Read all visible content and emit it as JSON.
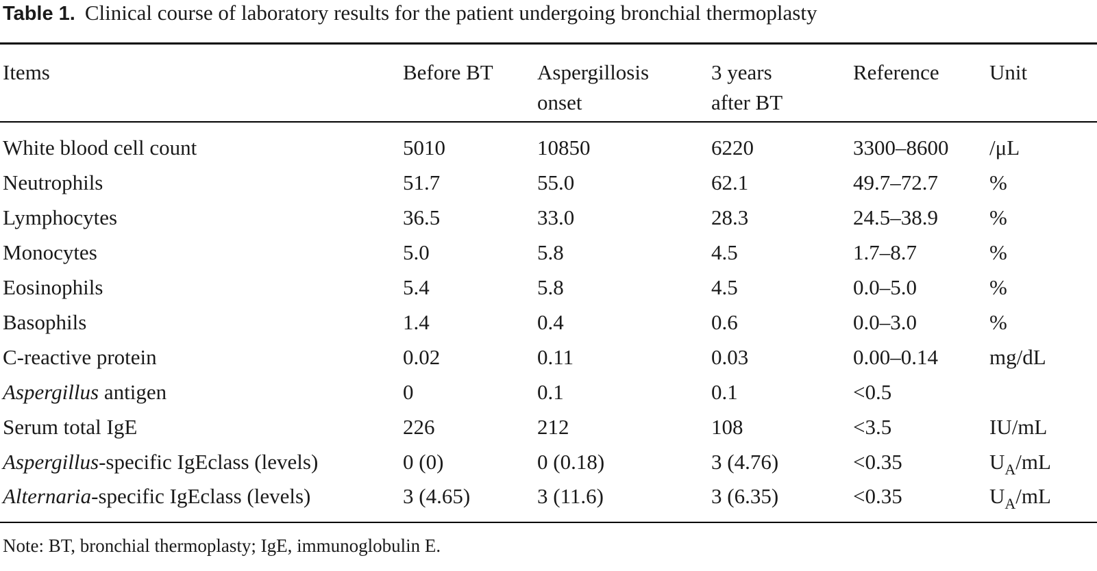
{
  "caption": {
    "label": "Table 1.",
    "text": "Clinical course of laboratory results for the patient undergoing bronchial thermoplasty"
  },
  "headers": {
    "items": "Items",
    "before_bt": "Before BT",
    "aspergillosis_onset_1": "Aspergillosis",
    "aspergillosis_onset_2": "onset",
    "three_years_1": "3 years",
    "three_years_2": "after BT",
    "reference": "Reference",
    "unit": "Unit"
  },
  "rows": [
    {
      "item": "White blood cell count",
      "before": "5010",
      "onset": "10850",
      "after": "6220",
      "ref": "3300–8600",
      "unit": "/μL"
    },
    {
      "item": "Neutrophils",
      "before": "51.7",
      "onset": "55.0",
      "after": "62.1",
      "ref": "49.7–72.7",
      "unit": "%"
    },
    {
      "item": "Lymphocytes",
      "before": "36.5",
      "onset": "33.0",
      "after": "28.3",
      "ref": "24.5–38.9",
      "unit": "%"
    },
    {
      "item": "Monocytes",
      "before": "5.0",
      "onset": "5.8",
      "after": "4.5",
      "ref": "1.7–8.7",
      "unit": "%"
    },
    {
      "item": "Eosinophils",
      "before": "5.4",
      "onset": "5.8",
      "after": "4.5",
      "ref": "0.0–5.0",
      "unit": "%"
    },
    {
      "item": "Basophils",
      "before": "1.4",
      "onset": "0.4",
      "after": "0.6",
      "ref": "0.0–3.0",
      "unit": "%"
    },
    {
      "item": "C-reactive protein",
      "before": "0.02",
      "onset": "0.11",
      "after": "0.03",
      "ref": "0.00–0.14",
      "unit": "mg/dL"
    },
    {
      "item_italic": "Aspergillus",
      "item_rest": " antigen",
      "before": "0",
      "onset": "0.1",
      "after": "0.1",
      "ref": "<0.5",
      "unit": ""
    },
    {
      "item": "Serum total IgE",
      "before": "226",
      "onset": "212",
      "after": "108",
      "ref": "<3.5",
      "unit": "IU/mL"
    },
    {
      "item_italic": "Aspergillus",
      "item_rest": "-specific IgEclass (levels)",
      "before": "0 (0)",
      "onset": "0 (0.18)",
      "after": "3 (4.76)",
      "ref": "<0.35",
      "unit_main": "U",
      "unit_sub": "A",
      "unit_rest": "/mL"
    },
    {
      "item_italic": "Alternaria",
      "item_rest": "-specific IgEclass (levels)",
      "before": "3 (4.65)",
      "onset": "3 (11.6)",
      "after": "3 (6.35)",
      "ref": "<0.35",
      "unit_main": "U",
      "unit_sub": "A",
      "unit_rest": "/mL"
    }
  ],
  "note": "Note: BT, bronchial thermoplasty; IgE, immunoglobulin E."
}
